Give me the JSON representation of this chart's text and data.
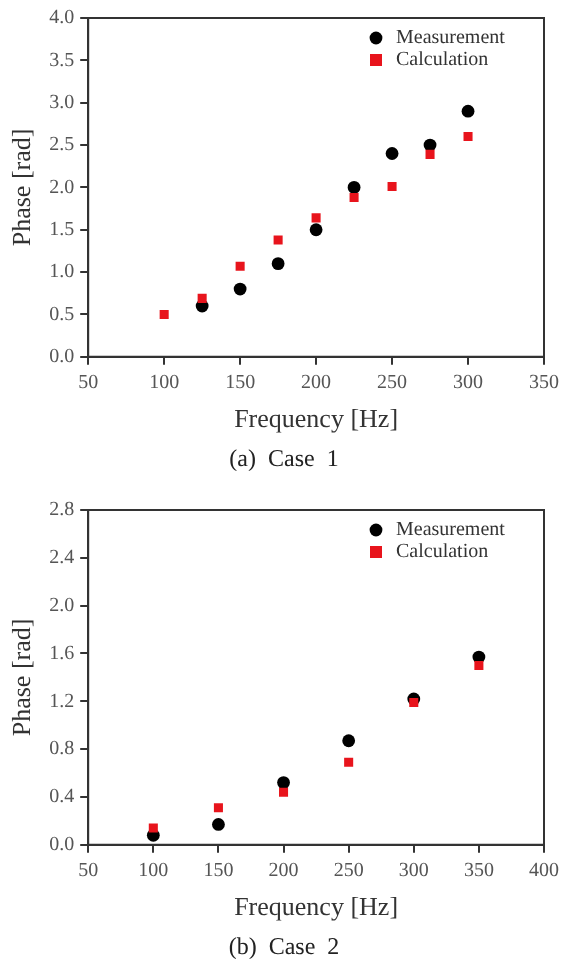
{
  "chart_data": [
    {
      "type": "scatter",
      "xlabel": "Frequency [Hz]",
      "ylabel": "Phase [rad]",
      "annotations": [
        "(a)  Case  1"
      ],
      "legend": "top right",
      "grid": false,
      "xlim": [
        50,
        350
      ],
      "xticks": [
        50,
        100,
        150,
        200,
        250,
        300,
        350
      ],
      "ylim": [
        0,
        4
      ],
      "yticks": [
        {
          "value": 0,
          "label": "0.0"
        },
        0.5,
        {
          "value": 1,
          "label": "1.0"
        },
        1.5,
        {
          "value": 2,
          "label": "2.0"
        },
        2.5,
        {
          "value": 3,
          "label": "3.0"
        },
        3.5,
        {
          "value": 4,
          "label": "4.0"
        }
      ],
      "series": [
        {
          "name": "Measurement",
          "color": "#000000",
          "marker": "circle",
          "x": [
            125,
            150,
            175,
            200,
            225,
            250,
            275,
            300
          ],
          "values": [
            0.6,
            0.8,
            1.1,
            1.5,
            2.0,
            2.4,
            2.5,
            2.9
          ]
        },
        {
          "name": "Calculation",
          "color": "#e8141c",
          "marker": "square",
          "x": [
            100,
            125,
            150,
            175,
            200,
            225,
            250,
            275,
            300
          ],
          "values": [
            0.5,
            0.69,
            1.07,
            1.38,
            1.64,
            1.88,
            2.01,
            2.39,
            2.6
          ]
        }
      ]
    },
    {
      "type": "scatter",
      "xlabel": "Frequency [Hz]",
      "ylabel": "Phase [rad]",
      "annotations": [
        "(b)  Case  2"
      ],
      "legend": "top right",
      "grid": false,
      "xlim": [
        50,
        400
      ],
      "xticks": [
        50,
        100,
        150,
        200,
        250,
        300,
        350,
        400
      ],
      "ylim": [
        0,
        2.8
      ],
      "yticks": [
        {
          "value": 0,
          "label": "0.0"
        },
        0.4,
        0.8,
        1.2,
        1.6,
        {
          "value": 2,
          "label": "2.0"
        },
        2.4,
        2.8
      ],
      "series": [
        {
          "name": "Measurement",
          "color": "#000000",
          "marker": "circle",
          "x": [
            100,
            150,
            200,
            250,
            300,
            350
          ],
          "values": [
            0.08,
            0.17,
            0.52,
            0.87,
            1.22,
            1.57
          ]
        },
        {
          "name": "Calculation",
          "color": "#e8141c",
          "marker": "square",
          "x": [
            100,
            150,
            200,
            250,
            300,
            350
          ],
          "values": [
            0.14,
            0.31,
            0.44,
            0.69,
            1.19,
            1.5
          ]
        }
      ]
    }
  ]
}
